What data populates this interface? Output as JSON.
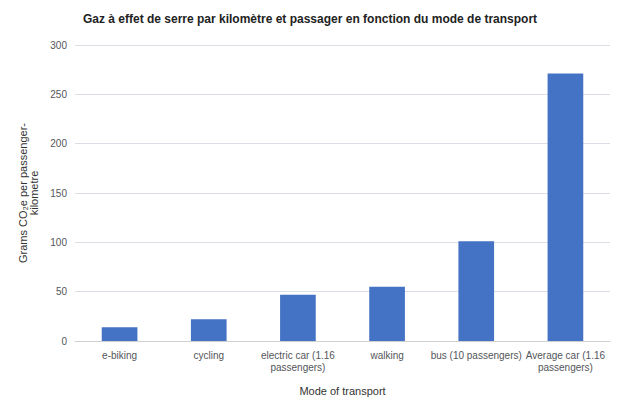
{
  "chart_data": {
    "type": "bar",
    "title": "Gaz à effet de serre par kilomètre et passager en fonction du mode de transport",
    "categories": [
      "e-biking",
      "cycling",
      "electric car (1.16\npassengers)",
      "walking",
      "bus (10 passengers)",
      "Average car (1.16\npassengers)"
    ],
    "values": [
      14,
      22,
      47,
      55,
      101,
      271
    ],
    "color": "#4472C4",
    "xlabel": "Mode of transport",
    "ylabel": "Grams CO₂e per passenger-\nkilometre",
    "ylim": [
      0,
      300
    ],
    "yticks": [
      0,
      50,
      100,
      150,
      200,
      250,
      300
    ],
    "grid": true
  }
}
